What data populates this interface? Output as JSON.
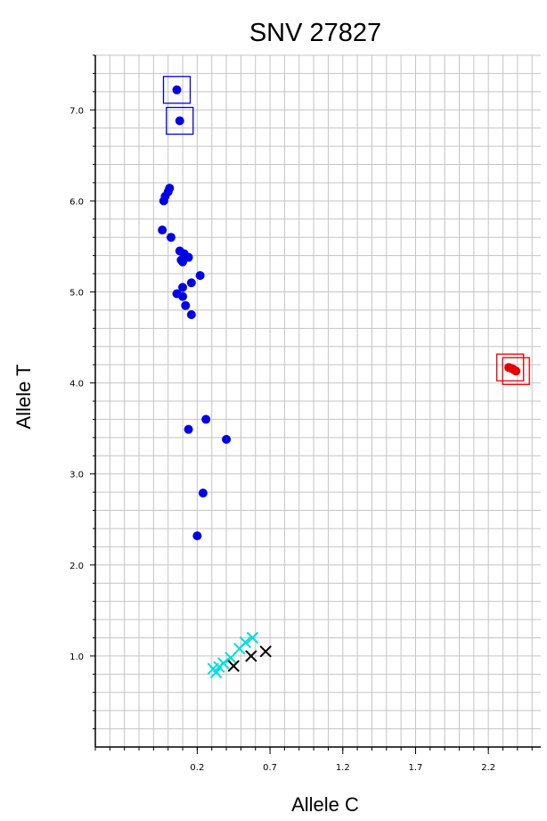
{
  "chart_data": {
    "type": "scatter",
    "title": "SNV 27827",
    "xlabel": "Allele C",
    "ylabel": "Allele T",
    "xlim": [
      -0.5,
      2.56
    ],
    "ylim": [
      0.0,
      7.6
    ],
    "x_ticks": [
      0.2,
      0.7,
      1.2,
      1.7,
      2.2
    ],
    "x_tick_labels": [
      "0.2",
      "0.7",
      "1.2",
      "1.7",
      "2.2"
    ],
    "y_ticks": [
      1.0,
      2.0,
      3.0,
      4.0,
      5.0,
      6.0,
      7.0
    ],
    "y_tick_labels": [
      "1.0",
      "2.0",
      "3.0",
      "4.0",
      "5.0",
      "6.0",
      "7.0"
    ],
    "grid": true,
    "series": [
      {
        "marker": "dot",
        "color": "#0000e6",
        "points": [
          [
            0.06,
            7.22
          ],
          [
            0.08,
            6.88
          ],
          [
            0.01,
            6.14
          ],
          [
            0.0,
            6.1
          ],
          [
            -0.02,
            6.05
          ],
          [
            -0.03,
            6.0
          ],
          [
            -0.04,
            5.68
          ],
          [
            0.02,
            5.6
          ],
          [
            0.08,
            5.45
          ],
          [
            0.11,
            5.42
          ],
          [
            0.14,
            5.38
          ],
          [
            0.09,
            5.35
          ],
          [
            0.1,
            5.33
          ],
          [
            0.22,
            5.18
          ],
          [
            0.16,
            5.1
          ],
          [
            0.1,
            5.05
          ],
          [
            0.06,
            4.98
          ],
          [
            0.1,
            4.95
          ],
          [
            0.12,
            4.85
          ],
          [
            0.16,
            4.75
          ],
          [
            0.26,
            3.6
          ],
          [
            0.14,
            3.49
          ],
          [
            0.4,
            3.38
          ],
          [
            0.24,
            2.79
          ],
          [
            0.2,
            2.32
          ]
        ]
      },
      {
        "marker": "dot",
        "color": "#e60000",
        "points": [
          [
            2.34,
            4.17
          ],
          [
            2.36,
            4.16
          ],
          [
            2.39,
            4.13
          ],
          [
            2.37,
            4.15
          ]
        ]
      },
      {
        "marker": "x",
        "color": "#00dede",
        "points": [
          [
            0.31,
            0.86
          ],
          [
            0.33,
            0.82
          ],
          [
            0.35,
            0.88
          ],
          [
            0.38,
            0.92
          ],
          [
            0.43,
            0.98
          ],
          [
            0.49,
            1.08
          ],
          [
            0.53,
            1.15
          ],
          [
            0.58,
            1.2
          ]
        ]
      },
      {
        "marker": "x",
        "color": "#000000",
        "points": [
          [
            0.45,
            0.89
          ],
          [
            0.57,
            1.0
          ],
          [
            0.67,
            1.05
          ]
        ]
      }
    ],
    "highlight_boxes": [
      {
        "color": "#0000e6",
        "x": 0.06,
        "y": 7.22
      },
      {
        "color": "#0000e6",
        "x": 0.08,
        "y": 6.88
      },
      {
        "color": "#e60000",
        "x": 2.35,
        "y": 4.17
      },
      {
        "color": "#e60000",
        "x": 2.39,
        "y": 4.13
      }
    ]
  }
}
